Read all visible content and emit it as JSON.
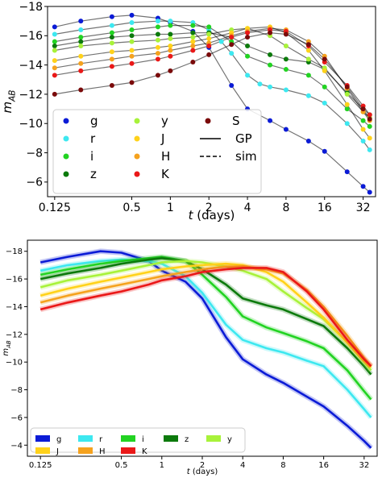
{
  "chart_data": [
    {
      "type": "scatter",
      "xlabel": "t (days)",
      "ylabel": "m_AB",
      "xscale": "log2",
      "xlim": [
        0.11,
        40
      ],
      "ylim": [
        -5,
        -18
      ],
      "xticks": [
        0.125,
        0.5,
        1,
        2,
        4,
        8,
        16,
        32
      ],
      "xtick_labels": [
        "0.125",
        "0.5",
        "1",
        "2",
        "4",
        "8",
        "16",
        "32"
      ],
      "yticks": [
        -18,
        -16,
        -14,
        -12,
        -10,
        -8,
        -6
      ],
      "ytick_labels": [
        "−18",
        "−16",
        "−14",
        "−12",
        "−10",
        "−8",
        "−6"
      ],
      "legend_location": "lower-left",
      "legend_entries": [
        {
          "label": "g",
          "marker": "dot",
          "color": "#0b1bd6"
        },
        {
          "label": "r",
          "marker": "dot",
          "color": "#3de8f0"
        },
        {
          "label": "i",
          "marker": "dot",
          "color": "#22d322"
        },
        {
          "label": "z",
          "marker": "dot",
          "color": "#0c7a0c"
        },
        {
          "label": "y",
          "marker": "dot",
          "color": "#a8f23a"
        },
        {
          "label": "J",
          "marker": "dot",
          "color": "#ffd21a"
        },
        {
          "label": "H",
          "marker": "dot",
          "color": "#f5a21e"
        },
        {
          "label": "K",
          "marker": "dot",
          "color": "#ea1818"
        },
        {
          "label": "S",
          "marker": "dot",
          "color": "#7a0a0a"
        },
        {
          "label": "GP",
          "marker": "solid-line",
          "color": "#000000"
        },
        {
          "label": "sim",
          "marker": "dashed-line",
          "color": "#000000"
        }
      ],
      "series": [
        {
          "name": "g",
          "color": "#0b1bd6",
          "x": [
            0.125,
            0.2,
            0.35,
            0.5,
            0.8,
            1,
            1.5,
            2,
            3,
            4,
            6,
            8,
            12,
            16,
            24,
            32,
            36
          ],
          "y": [
            -16.6,
            -17.0,
            -17.3,
            -17.4,
            -17.2,
            -16.9,
            -16.3,
            -15.2,
            -12.6,
            -11.0,
            -10.2,
            -9.6,
            -8.8,
            -8.1,
            -6.7,
            -5.7,
            -5.3
          ]
        },
        {
          "name": "r",
          "color": "#3de8f0",
          "x": [
            0.125,
            0.2,
            0.35,
            0.5,
            0.8,
            1,
            1.5,
            2,
            2.5,
            3,
            4,
            5,
            6,
            8,
            12,
            16,
            24,
            32,
            36
          ],
          "y": [
            -16.1,
            -16.4,
            -16.7,
            -16.9,
            -17.0,
            -17.0,
            -16.9,
            -16.4,
            -15.6,
            -14.8,
            -13.3,
            -12.7,
            -12.5,
            -12.3,
            -11.9,
            -11.4,
            -10.0,
            -8.8,
            -8.2
          ]
        },
        {
          "name": "i",
          "color": "#22d322",
          "x": [
            0.125,
            0.2,
            0.35,
            0.5,
            0.8,
            1,
            1.5,
            2,
            3,
            4,
            6,
            8,
            12,
            16,
            24,
            32,
            36
          ],
          "y": [
            -15.6,
            -15.9,
            -16.2,
            -16.4,
            -16.6,
            -16.7,
            -16.7,
            -16.6,
            -15.6,
            -14.6,
            -14.0,
            -13.7,
            -13.3,
            -12.5,
            -11.0,
            -10.2,
            -9.8
          ]
        },
        {
          "name": "z",
          "color": "#0c7a0c",
          "x": [
            0.125,
            0.2,
            0.35,
            0.5,
            0.8,
            1,
            1.5,
            2,
            3,
            4,
            6,
            8,
            12,
            16,
            24,
            32,
            36
          ],
          "y": [
            -15.3,
            -15.6,
            -15.9,
            -16.0,
            -16.1,
            -16.1,
            -16.2,
            -16.2,
            -15.9,
            -15.3,
            -14.7,
            -14.4,
            -14.2,
            -13.7,
            -12.1,
            -11.0,
            -10.6
          ]
        },
        {
          "name": "y",
          "color": "#a8f23a",
          "x": [
            0.125,
            0.2,
            0.35,
            0.5,
            0.8,
            1,
            1.5,
            2,
            3,
            4,
            6,
            8,
            12,
            16,
            24,
            32,
            36
          ],
          "y": [
            -15.0,
            -15.3,
            -15.5,
            -15.6,
            -15.7,
            -15.8,
            -15.9,
            -16.1,
            -16.4,
            -16.5,
            -16.0,
            -15.3,
            -14.4,
            -13.8,
            -12.0,
            -10.8,
            -10.4
          ]
        },
        {
          "name": "J",
          "color": "#ffd21a",
          "x": [
            0.125,
            0.2,
            0.35,
            0.5,
            0.8,
            1,
            1.5,
            2,
            3,
            4,
            6,
            8,
            12,
            16,
            24,
            32,
            36
          ],
          "y": [
            -14.3,
            -14.6,
            -14.9,
            -15.0,
            -15.2,
            -15.3,
            -15.6,
            -15.8,
            -16.2,
            -16.5,
            -16.6,
            -16.2,
            -15.0,
            -13.6,
            -11.3,
            -9.6,
            -9.0
          ]
        },
        {
          "name": "H",
          "color": "#f5a21e",
          "x": [
            0.125,
            0.2,
            0.35,
            0.5,
            0.8,
            1,
            1.5,
            2,
            3,
            4,
            6,
            8,
            12,
            16,
            24,
            32,
            36
          ],
          "y": [
            -13.8,
            -14.1,
            -14.4,
            -14.6,
            -14.8,
            -15.0,
            -15.3,
            -15.5,
            -16.0,
            -16.3,
            -16.5,
            -16.4,
            -15.6,
            -14.6,
            -12.4,
            -10.8,
            -10.2
          ]
        },
        {
          "name": "K",
          "color": "#ea1818",
          "x": [
            0.125,
            0.2,
            0.35,
            0.5,
            0.8,
            1,
            1.5,
            2,
            3,
            4,
            6,
            8,
            12,
            16,
            24,
            32,
            36
          ],
          "y": [
            -13.3,
            -13.6,
            -13.9,
            -14.1,
            -14.4,
            -14.6,
            -15.0,
            -15.3,
            -15.9,
            -16.2,
            -16.4,
            -16.3,
            -15.3,
            -14.2,
            -12.6,
            -11.2,
            -10.6
          ]
        },
        {
          "name": "S",
          "color": "#7a0a0a",
          "x": [
            0.125,
            0.2,
            0.35,
            0.5,
            0.8,
            1,
            1.5,
            2,
            3,
            4,
            6,
            8,
            12,
            16,
            24,
            32,
            36
          ],
          "y": [
            -12.0,
            -12.3,
            -12.6,
            -12.8,
            -13.3,
            -13.6,
            -14.2,
            -14.7,
            -15.4,
            -15.9,
            -16.2,
            -16.1,
            -15.4,
            -14.4,
            -12.5,
            -11.0,
            -10.3
          ]
        }
      ]
    },
    {
      "type": "line",
      "xlabel": "t (days)",
      "ylabel": "m_AB",
      "xscale": "log2",
      "xlim": [
        0.1,
        40
      ],
      "ylim": [
        -3.2,
        -18.8
      ],
      "xticks": [
        0.125,
        0.5,
        1,
        2,
        4,
        8,
        16,
        32
      ],
      "xtick_labels": [
        "0.125",
        "0.5",
        "1",
        "2",
        "4",
        "8",
        "16",
        "32"
      ],
      "yticks": [
        -18,
        -16,
        -14,
        -12,
        -10,
        -8,
        -6,
        -4
      ],
      "ytick_labels": [
        "−18",
        "−16",
        "−14",
        "−12",
        "−10",
        "−8",
        "−6",
        "−4"
      ],
      "legend_location": "lower-left",
      "legend_entries": [
        {
          "label": "g",
          "color": "#0b1bd6"
        },
        {
          "label": "r",
          "color": "#3de8f0"
        },
        {
          "label": "i",
          "color": "#22d322"
        },
        {
          "label": "z",
          "color": "#0c7a0c"
        },
        {
          "label": "y",
          "color": "#a8f23a"
        },
        {
          "label": "J",
          "color": "#ffd21a"
        },
        {
          "label": "H",
          "color": "#f5a21e"
        },
        {
          "label": "K",
          "color": "#ea1818"
        }
      ],
      "series": [
        {
          "name": "g",
          "color": "#0b1bd6",
          "x": [
            0.125,
            0.2,
            0.35,
            0.5,
            0.8,
            1,
            1.5,
            2,
            3,
            4,
            6,
            8,
            12,
            16,
            24,
            32,
            36
          ],
          "y": [
            -17.2,
            -17.6,
            -18.0,
            -17.9,
            -17.3,
            -16.6,
            -15.8,
            -14.6,
            -11.8,
            -10.2,
            -9.1,
            -8.5,
            -7.5,
            -6.8,
            -5.4,
            -4.3,
            -3.8
          ]
        },
        {
          "name": "r",
          "color": "#3de8f0",
          "x": [
            0.125,
            0.2,
            0.35,
            0.5,
            0.8,
            1,
            1.5,
            2,
            3,
            4,
            6,
            8,
            12,
            16,
            24,
            32,
            36
          ],
          "y": [
            -16.6,
            -17.0,
            -17.3,
            -17.4,
            -17.3,
            -17.1,
            -16.2,
            -15.0,
            -12.7,
            -11.6,
            -11.0,
            -10.7,
            -10.1,
            -9.7,
            -8.0,
            -6.6,
            -6.0
          ]
        },
        {
          "name": "i",
          "color": "#22d322",
          "x": [
            0.125,
            0.2,
            0.35,
            0.5,
            0.8,
            1,
            1.5,
            2,
            3,
            4,
            6,
            8,
            12,
            16,
            24,
            32,
            36
          ],
          "y": [
            -16.3,
            -16.7,
            -17.1,
            -17.3,
            -17.5,
            -17.6,
            -17.3,
            -16.3,
            -14.7,
            -13.3,
            -12.5,
            -12.1,
            -11.5,
            -11.0,
            -9.4,
            -7.9,
            -7.3
          ]
        },
        {
          "name": "z",
          "color": "#0c7a0c",
          "x": [
            0.125,
            0.2,
            0.35,
            0.5,
            0.8,
            1,
            1.5,
            2,
            3,
            4,
            6,
            8,
            12,
            16,
            24,
            32,
            36
          ],
          "y": [
            -16.0,
            -16.4,
            -16.8,
            -17.1,
            -17.4,
            -17.5,
            -17.3,
            -16.7,
            -15.6,
            -14.6,
            -14.1,
            -13.8,
            -13.1,
            -12.6,
            -11.0,
            -9.7,
            -9.1
          ]
        },
        {
          "name": "y",
          "color": "#a8f23a",
          "x": [
            0.125,
            0.2,
            0.35,
            0.5,
            0.8,
            1,
            1.5,
            2,
            3,
            4,
            6,
            8,
            12,
            16,
            24,
            32,
            36
          ],
          "y": [
            -15.4,
            -15.9,
            -16.3,
            -16.6,
            -17.0,
            -17.2,
            -17.3,
            -17.2,
            -16.9,
            -16.6,
            -16.0,
            -15.1,
            -13.9,
            -13.1,
            -11.4,
            -10.0,
            -9.4
          ]
        },
        {
          "name": "J",
          "color": "#ffd21a",
          "x": [
            0.125,
            0.2,
            0.35,
            0.5,
            0.8,
            1,
            1.5,
            2,
            3,
            4,
            6,
            8,
            12,
            16,
            24,
            32,
            36
          ],
          "y": [
            -14.8,
            -15.3,
            -15.8,
            -16.1,
            -16.5,
            -16.7,
            -16.9,
            -17.0,
            -17.1,
            -17.0,
            -16.5,
            -15.8,
            -14.3,
            -13.2,
            -11.4,
            -10.1,
            -9.6
          ]
        },
        {
          "name": "H",
          "color": "#f5a21e",
          "x": [
            0.125,
            0.2,
            0.35,
            0.5,
            0.8,
            1,
            1.5,
            2,
            3,
            4,
            6,
            8,
            12,
            16,
            24,
            32,
            36
          ],
          "y": [
            -14.3,
            -14.8,
            -15.3,
            -15.6,
            -16.0,
            -16.2,
            -16.5,
            -16.7,
            -16.9,
            -16.9,
            -16.7,
            -16.4,
            -15.2,
            -14.0,
            -11.9,
            -10.3,
            -9.7
          ]
        },
        {
          "name": "K",
          "color": "#ea1818",
          "x": [
            0.125,
            0.2,
            0.35,
            0.5,
            0.8,
            1,
            1.5,
            2,
            3,
            4,
            6,
            8,
            12,
            16,
            24,
            32,
            36
          ],
          "y": [
            -13.8,
            -14.3,
            -14.8,
            -15.1,
            -15.6,
            -15.9,
            -16.2,
            -16.5,
            -16.7,
            -16.8,
            -16.8,
            -16.5,
            -15.1,
            -13.8,
            -11.6,
            -10.2,
            -9.7
          ]
        }
      ]
    }
  ]
}
